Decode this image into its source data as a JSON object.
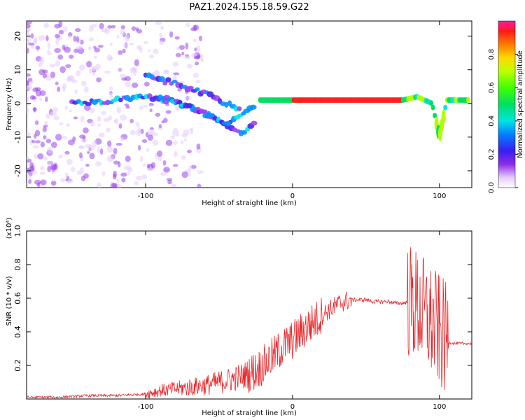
{
  "title": "PAZ1.2024.155.18.59.G22",
  "chart_data": [
    {
      "type": "heatmap",
      "xlabel": "Height of straight line (km)",
      "ylabel": "Frequency (Hz)",
      "xlim": [
        -181,
        122
      ],
      "ylim": [
        -25,
        24.5
      ],
      "xticks": [
        -100,
        0,
        100
      ],
      "xtick_labels": [
        "-100",
        "0",
        "100"
      ],
      "yticks": [
        -20,
        -10,
        0,
        10,
        20
      ],
      "ytick_labels": [
        "-20",
        "-10",
        "0",
        "10",
        "20"
      ],
      "colorbar": {
        "label": "Normalized spectral amplitude",
        "range": [
          0,
          1
        ],
        "ticks": [
          0.0,
          0.2,
          0.4,
          0.6,
          0.8
        ],
        "tick_labels": [
          "0.0",
          "0.2",
          "0.4",
          "0.6",
          "0.8"
        ]
      },
      "bands": [
        {
          "name": "upper",
          "points": [
            [
              -100,
              8
            ],
            [
              -80,
              6
            ],
            [
              -60,
              3
            ],
            [
              -45,
              0
            ],
            [
              -35,
              -2
            ]
          ]
        },
        {
          "name": "main",
          "points": [
            [
              -150,
              0
            ],
            [
              -120,
              1
            ],
            [
              -100,
              2
            ],
            [
              -85,
              1
            ],
            [
              -70,
              -1
            ],
            [
              -55,
              -4
            ],
            [
              -45,
              -7
            ],
            [
              -35,
              -3
            ],
            [
              -25,
              -1
            ]
          ]
        },
        {
          "name": "lower",
          "points": [
            [
              -90,
              2
            ],
            [
              -75,
              0
            ],
            [
              -60,
              -3
            ],
            [
              -45,
              -6
            ],
            [
              -35,
              -9
            ],
            [
              -25,
              -6
            ]
          ]
        },
        {
          "name": "carrier",
          "points": [
            [
              -22,
              1
            ],
            [
              0,
              1
            ],
            [
              30,
              1
            ],
            [
              60,
              1
            ],
            [
              75,
              1
            ],
            [
              85,
              2
            ],
            [
              95,
              0
            ],
            [
              100,
              -10
            ],
            [
              105,
              1
            ],
            [
              120,
              1
            ]
          ]
        }
      ]
    },
    {
      "type": "line",
      "xlabel": "Height of straight line (km)",
      "ylabel": "SNR (10 * v/v)",
      "scale_label": "(x10⁴)",
      "xlim": [
        -181,
        122
      ],
      "ylim": [
        0,
        1.0
      ],
      "xticks": [
        -100,
        0,
        100
      ],
      "xtick_labels": [
        "-100",
        "0",
        "100"
      ],
      "yticks": [
        0.2,
        0.4,
        0.6,
        0.8,
        1.0
      ],
      "ytick_labels": [
        "0.2",
        "0.4",
        "0.6",
        "0.8",
        "1.0"
      ],
      "series": [
        {
          "color": "#e8282d",
          "x": [
            -181,
            -160,
            -140,
            -120,
            -100,
            -90,
            -80,
            -70,
            -60,
            -50,
            -40,
            -30,
            -25,
            -20,
            -15,
            -10,
            -5,
            0,
            5,
            10,
            15,
            20,
            25,
            30,
            35,
            40,
            45,
            50,
            55,
            60,
            65,
            70,
            75,
            80,
            85,
            90,
            95,
            100,
            105,
            110,
            115,
            122
          ],
          "y": [
            0.01,
            0.01,
            0.02,
            0.02,
            0.03,
            0.05,
            0.06,
            0.07,
            0.08,
            0.1,
            0.12,
            0.15,
            0.17,
            0.2,
            0.24,
            0.28,
            0.32,
            0.35,
            0.39,
            0.43,
            0.46,
            0.5,
            0.53,
            0.56,
            0.58,
            0.59,
            0.59,
            0.59,
            0.58,
            0.58,
            0.58,
            0.57,
            0.57,
            0.58,
            0.55,
            0.5,
            0.45,
            0.4,
            0.34,
            0.33,
            0.33,
            0.33
          ]
        }
      ]
    }
  ]
}
